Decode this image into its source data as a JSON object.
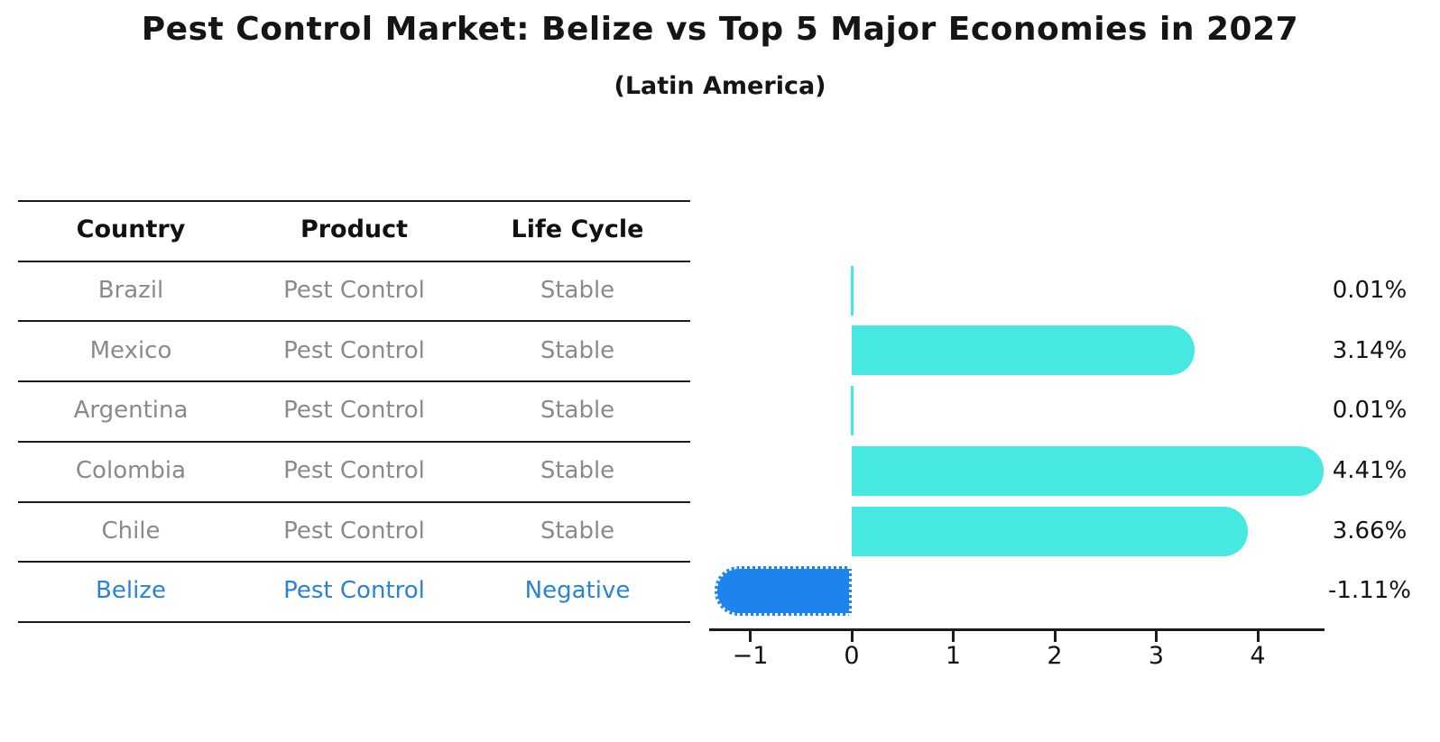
{
  "title": "Pest Control Market: Belize vs Top 5 Major Economies in 2027",
  "subtitle": "(Latin America)",
  "table": {
    "headers": {
      "country": "Country",
      "product": "Product",
      "life_cycle": "Life Cycle"
    },
    "rows": [
      {
        "country": "Brazil",
        "product": "Pest Control",
        "life_cycle": "Stable",
        "highlight": false
      },
      {
        "country": "Mexico",
        "product": "Pest Control",
        "life_cycle": "Stable",
        "highlight": false
      },
      {
        "country": "Argentina",
        "product": "Pest Control",
        "life_cycle": "Stable",
        "highlight": false
      },
      {
        "country": "Colombia",
        "product": "Pest Control",
        "life_cycle": "Stable",
        "highlight": false
      },
      {
        "country": "Chile",
        "product": "Pest Control",
        "life_cycle": "Stable",
        "highlight": false
      },
      {
        "country": "Belize",
        "product": "Pest Control",
        "life_cycle": "Negative",
        "highlight": true
      }
    ]
  },
  "chart_data": {
    "type": "bar",
    "orientation": "horizontal",
    "title": "Pest Control Market: Belize vs Top 5 Major Economies in 2027",
    "subtitle": "(Latin America)",
    "categories": [
      "Brazil",
      "Mexico",
      "Argentina",
      "Colombia",
      "Chile",
      "Belize"
    ],
    "values": [
      0.01,
      3.14,
      0.01,
      4.41,
      3.66,
      -1.11
    ],
    "value_labels": [
      "0.01%",
      "3.14%",
      "0.01%",
      "4.41%",
      "3.66%",
      "-1.11%"
    ],
    "xticks": [
      -1,
      0,
      1,
      2,
      3,
      4
    ],
    "xtick_labels": [
      "−1",
      "0",
      "1",
      "2",
      "3",
      "4"
    ],
    "xlim": [
      -1.45,
      4.65
    ],
    "ylabel": "",
    "xlabel": "",
    "grid": false,
    "legend": false,
    "highlight_category": "Belize",
    "bar_colors": {
      "positive": "#48E8E2",
      "negative": "#1E83EC"
    }
  },
  "colors": {
    "background": "#ffffff",
    "text_primary": "#151515",
    "table_row_text": "#8a8a8a",
    "highlight_text": "#2a82d8",
    "rule_line": "#1b1b1b"
  }
}
